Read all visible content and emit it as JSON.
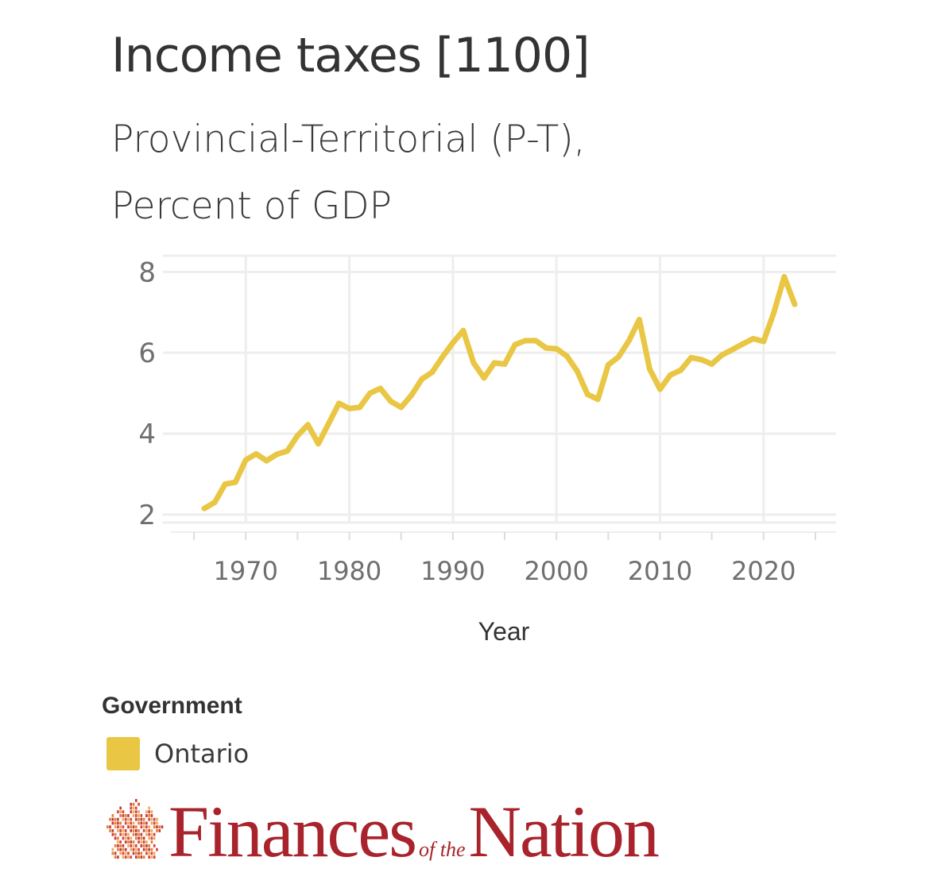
{
  "header": {
    "title": "Income taxes [1100]",
    "subtitle_line1": "Provincial-Territorial (P-T),",
    "subtitle_line2": "Percent of GDP"
  },
  "legend": {
    "title": "Government",
    "items": [
      {
        "label": "Ontario",
        "color": "#E9C643"
      }
    ]
  },
  "logo": {
    "word1": "Finances",
    "connector": "of the",
    "word2": "Nation",
    "color": "#A8232B",
    "mark_colors": [
      "#D1453B",
      "#E57B3C",
      "#F2A65A",
      "#C23B2E"
    ]
  },
  "chart_data": {
    "type": "line",
    "title": "Income taxes [1100]",
    "subtitle": "Provincial-Territorial (P-T), Percent of GDP",
    "xlabel": "Year",
    "ylabel": "",
    "xlim": [
      1962,
      2027
    ],
    "ylim": [
      1.8,
      8.4
    ],
    "xticks": [
      1970,
      1980,
      1990,
      2000,
      2010,
      2020
    ],
    "yticks": [
      2,
      4,
      6,
      8
    ],
    "grid": true,
    "legend_position": "bottom-left",
    "colors": {
      "gridline": "#EEEEEE",
      "tick_text": "#6F6F6F"
    },
    "series": [
      {
        "name": "Ontario",
        "color": "#E9C643",
        "x": [
          1966,
          1967,
          1968,
          1969,
          1970,
          1971,
          1972,
          1973,
          1974,
          1975,
          1976,
          1977,
          1978,
          1979,
          1980,
          1981,
          1982,
          1983,
          1984,
          1985,
          1986,
          1987,
          1988,
          1989,
          1990,
          1991,
          1992,
          1993,
          1994,
          1995,
          1996,
          1997,
          1998,
          1999,
          2000,
          2001,
          2002,
          2003,
          2004,
          2005,
          2006,
          2007,
          2008,
          2009,
          2010,
          2011,
          2012,
          2013,
          2014,
          2015,
          2016,
          2017,
          2018,
          2019,
          2020,
          2021,
          2022,
          2023
        ],
        "values": [
          2.15,
          2.3,
          2.75,
          2.8,
          3.35,
          3.5,
          3.33,
          3.49,
          3.57,
          3.95,
          4.22,
          3.75,
          4.25,
          4.75,
          4.62,
          4.65,
          5.0,
          5.12,
          4.8,
          4.65,
          4.95,
          5.35,
          5.52,
          5.9,
          6.25,
          6.55,
          5.75,
          5.38,
          5.75,
          5.72,
          6.2,
          6.3,
          6.3,
          6.12,
          6.1,
          5.92,
          5.55,
          4.97,
          4.85,
          5.7,
          5.9,
          6.3,
          6.82,
          5.6,
          5.1,
          5.45,
          5.57,
          5.88,
          5.83,
          5.72,
          5.95,
          6.08,
          6.22,
          6.35,
          6.28,
          7.0,
          7.88,
          7.2
        ]
      }
    ]
  }
}
